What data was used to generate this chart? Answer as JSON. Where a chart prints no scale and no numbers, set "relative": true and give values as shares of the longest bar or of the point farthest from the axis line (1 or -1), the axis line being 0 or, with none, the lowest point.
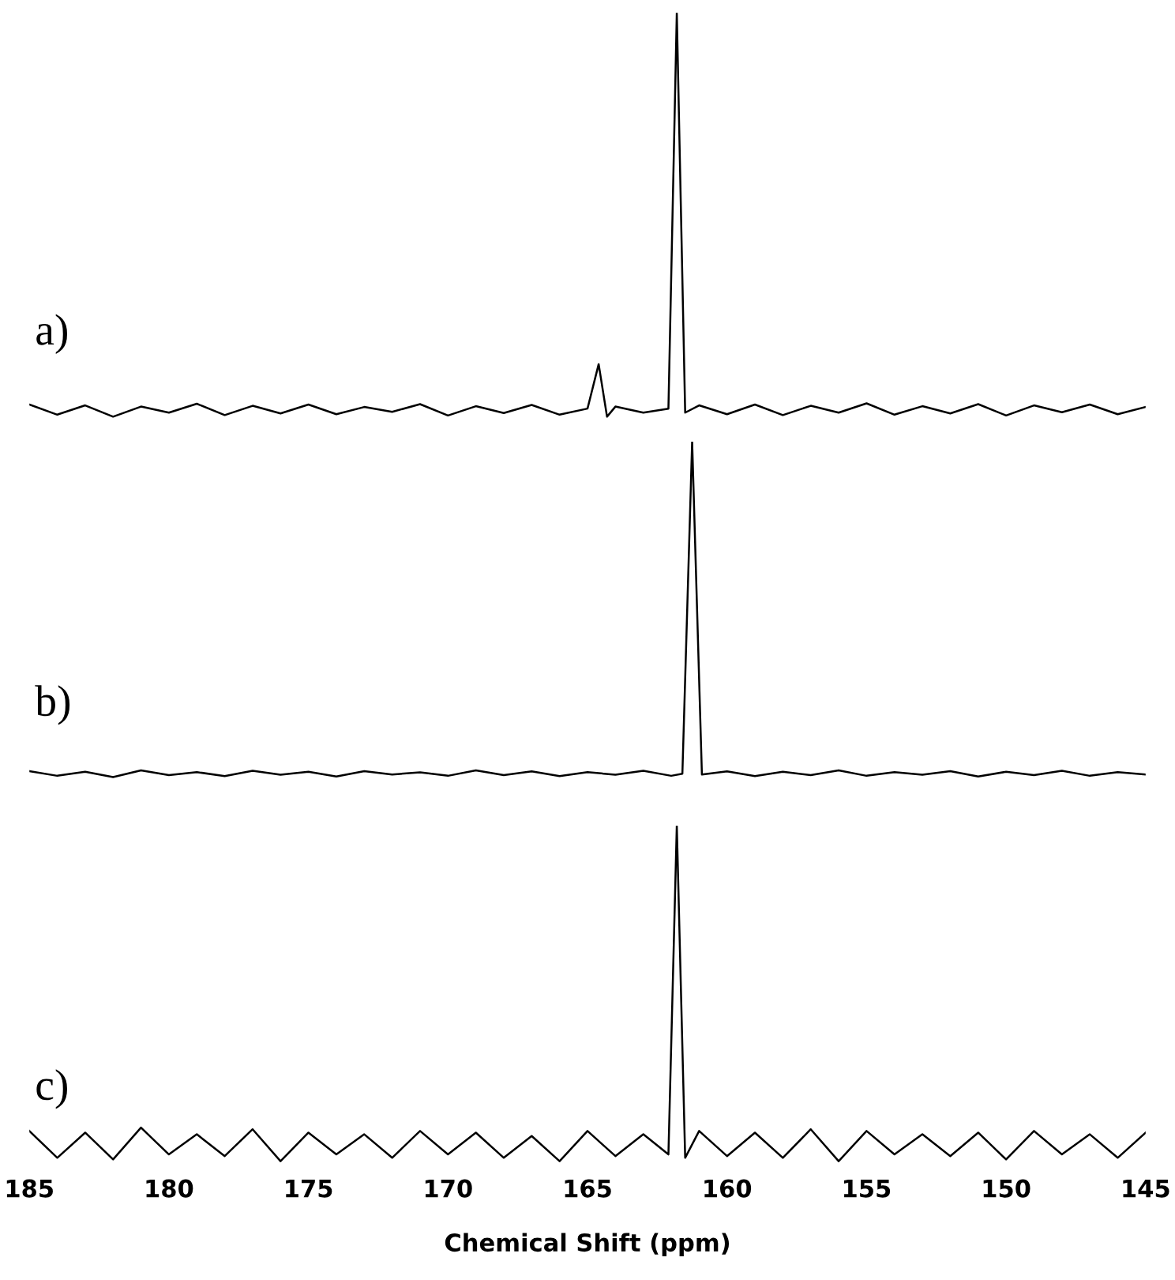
{
  "chart_data": [
    {
      "type": "line",
      "relative": true,
      "xlim": [
        185,
        145
      ],
      "tick_labels": false,
      "grid": false,
      "legend": false,
      "annotations": [
        "a)"
      ],
      "series": [
        {
          "color": "#000000",
          "x": [
            185,
            184,
            183,
            182,
            181,
            180,
            179,
            178,
            177,
            176,
            175,
            174,
            173,
            172,
            171,
            170,
            169,
            168,
            167,
            166,
            165,
            164.6,
            164.3,
            164,
            163,
            162.1,
            161.8,
            161.5,
            161,
            160,
            159,
            158,
            157,
            156,
            155,
            154,
            153,
            152,
            151,
            150,
            149,
            148,
            147,
            146,
            145
          ],
          "values": [
            0.03,
            0.005,
            0.028,
            0.0,
            0.025,
            0.01,
            0.032,
            0.004,
            0.027,
            0.008,
            0.03,
            0.006,
            0.024,
            0.012,
            0.031,
            0.003,
            0.026,
            0.009,
            0.029,
            0.005,
            0.02,
            0.13,
            0.0,
            0.025,
            0.01,
            0.02,
            1,
            0.01,
            0.028,
            0.006,
            0.03,
            0.004,
            0.027,
            0.01,
            0.033,
            0.005,
            0.026,
            0.008,
            0.031,
            0.003,
            0.028,
            0.011,
            0.03,
            0.006,
            0.024
          ]
        }
      ]
    },
    {
      "type": "line",
      "relative": true,
      "xlim": [
        185,
        145
      ],
      "tick_labels": false,
      "grid": false,
      "legend": false,
      "annotations": [
        "b)"
      ],
      "series": [
        {
          "color": "#000000",
          "x": [
            185,
            184,
            183,
            182,
            181,
            180,
            179,
            178,
            177,
            176,
            175,
            174,
            173,
            172,
            171,
            170,
            169,
            168,
            167,
            166,
            165,
            164,
            163,
            162,
            161.6,
            161.25,
            160.9,
            160,
            159,
            158,
            157,
            156,
            155,
            154,
            153,
            152,
            151,
            150,
            149,
            148,
            147,
            146,
            145
          ],
          "values": [
            0.018,
            0.004,
            0.016,
            0.0,
            0.02,
            0.006,
            0.015,
            0.003,
            0.019,
            0.007,
            0.016,
            0.002,
            0.018,
            0.008,
            0.014,
            0.004,
            0.02,
            0.006,
            0.017,
            0.003,
            0.015,
            0.007,
            0.019,
            0.004,
            0.01,
            1,
            0.008,
            0.017,
            0.003,
            0.016,
            0.006,
            0.02,
            0.004,
            0.015,
            0.007,
            0.018,
            0.002,
            0.016,
            0.006,
            0.019,
            0.004,
            0.015,
            0.008
          ]
        }
      ]
    },
    {
      "type": "line",
      "relative": true,
      "xlim": [
        185,
        145
      ],
      "xticks": [
        185,
        180,
        175,
        170,
        165,
        160,
        155,
        150,
        145
      ],
      "tick_labels": "x",
      "grid": false,
      "legend": false,
      "xlabel": "Chemical Shift (ppm)",
      "annotations": [
        "c)"
      ],
      "series": [
        {
          "color": "#000000",
          "x": [
            185,
            184,
            183,
            182,
            181,
            180,
            179,
            178,
            177,
            176,
            175,
            174,
            173,
            172,
            171,
            170,
            169,
            168,
            167,
            166,
            165,
            164,
            163,
            162.1,
            161.8,
            161.5,
            161,
            160,
            159,
            158,
            157,
            156,
            155,
            154,
            153,
            152,
            151,
            150,
            149,
            148,
            147,
            146,
            145
          ],
          "values": [
            0.09,
            0.01,
            0.085,
            0.005,
            0.1,
            0.02,
            0.08,
            0.015,
            0.095,
            0.0,
            0.085,
            0.02,
            0.08,
            0.01,
            0.09,
            0.02,
            0.085,
            0.01,
            0.075,
            0.0,
            0.09,
            0.015,
            0.08,
            0.02,
            1,
            0.01,
            0.09,
            0.015,
            0.085,
            0.01,
            0.095,
            0.0,
            0.09,
            0.02,
            0.08,
            0.015,
            0.085,
            0.005,
            0.09,
            0.02,
            0.08,
            0.01,
            0.085
          ]
        }
      ]
    }
  ]
}
